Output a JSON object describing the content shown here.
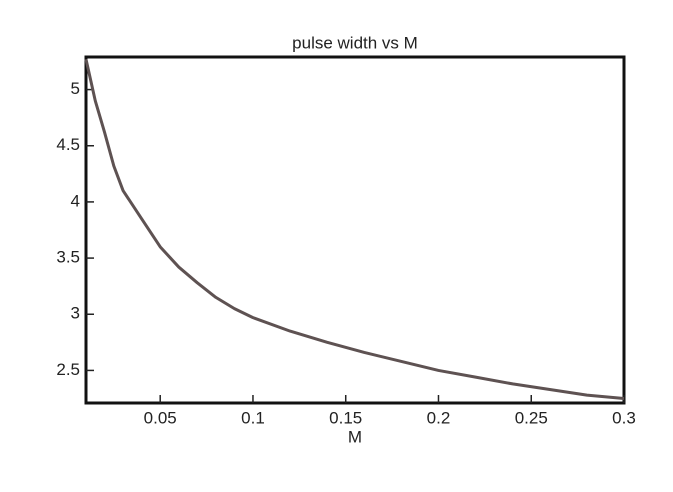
{
  "chart_data": {
    "type": "line",
    "title": "pulse width vs M",
    "x_label": "M",
    "x": [
      0.01,
      0.015,
      0.02,
      0.025,
      0.03,
      0.04,
      0.05,
      0.06,
      0.07,
      0.08,
      0.09,
      0.1,
      0.12,
      0.14,
      0.16,
      0.18,
      0.2,
      0.22,
      0.24,
      0.26,
      0.28,
      0.3
    ],
    "series": [
      {
        "color": "#5e5252",
        "values": [
          5.27,
          4.9,
          4.62,
          4.32,
          4.1,
          3.85,
          3.6,
          3.42,
          3.28,
          3.15,
          3.05,
          2.97,
          2.85,
          2.75,
          2.66,
          2.58,
          2.5,
          2.44,
          2.38,
          2.33,
          2.28,
          2.25
        ]
      }
    ],
    "xlim": [
      0.01,
      0.3
    ],
    "ylim": [
      2.21,
      5.29
    ],
    "xticks": [
      0.05,
      0.1,
      0.15,
      0.2,
      0.25,
      0.3
    ],
    "yticks": [
      2.5,
      3,
      3.5,
      4,
      4.5,
      5
    ]
  }
}
